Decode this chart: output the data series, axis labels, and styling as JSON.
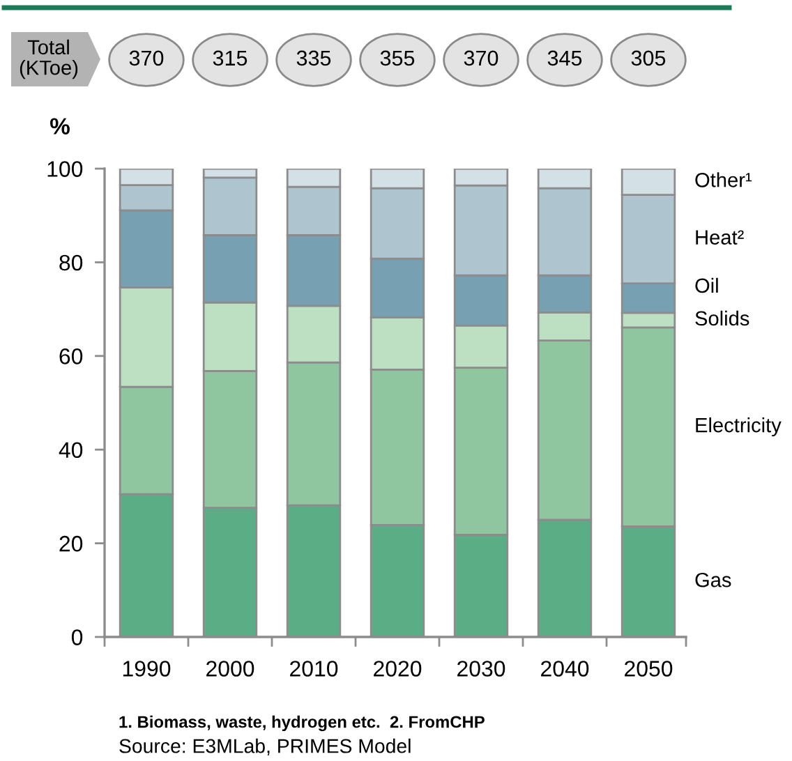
{
  "chart_data": {
    "type": "bar",
    "stacked": true,
    "categories": [
      "1990",
      "2000",
      "2010",
      "2020",
      "2030",
      "2040",
      "2050"
    ],
    "series": [
      {
        "name": "Gas",
        "color": "#5aad84",
        "values": [
          30.5,
          27.6,
          28.1,
          23.9,
          21.8,
          25.0,
          23.6
        ]
      },
      {
        "name": "Electricity",
        "color": "#8fc6a0",
        "values": [
          22.9,
          29.2,
          30.5,
          33.2,
          35.7,
          38.3,
          42.5
        ]
      },
      {
        "name": "Solids",
        "color": "#bde0c3",
        "values": [
          21.2,
          14.6,
          12.1,
          11.1,
          9.0,
          6.0,
          3.1
        ]
      },
      {
        "name": "Oil",
        "color": "#77a1b2",
        "values": [
          16.5,
          14.4,
          15.1,
          12.6,
          10.7,
          7.9,
          6.3
        ]
      },
      {
        "name": "Heat²",
        "color": "#aec5d0",
        "values": [
          5.4,
          12.3,
          10.3,
          15.0,
          19.2,
          18.6,
          18.9
        ]
      },
      {
        "name": "Other¹",
        "color": "#d3e0e6",
        "values": [
          3.5,
          1.9,
          3.9,
          4.2,
          3.6,
          4.2,
          5.6
        ]
      }
    ],
    "ylabel": "%",
    "ylim": [
      0,
      100
    ],
    "yticks": [
      0,
      20,
      40,
      60,
      80,
      100
    ],
    "annotations": [
      "Total\n(KToe)",
      "370",
      "315",
      "335",
      "355",
      "370",
      "345",
      "305",
      "1. Biomass, waste, hydrogen etc.  2. FromCHP",
      "Source: E3MLab, PRIMES Model"
    ]
  }
}
